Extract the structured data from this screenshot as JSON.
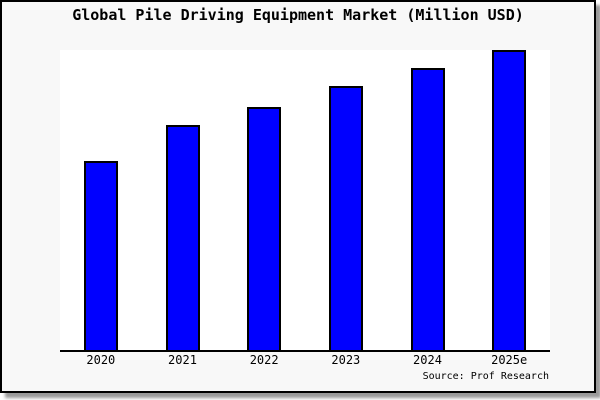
{
  "header": {
    "title": "Global Pile Driving Equipment Market (Million USD)"
  },
  "footer": {
    "source": "Source: Prof Research"
  },
  "colors": {
    "bar_fill": "#0000FF",
    "bar_border": "#000000",
    "canvas_bg": "#F8F8F8",
    "plot_bg": "#FFFFFF",
    "axis_line": "#000000",
    "text": "#000000"
  },
  "chart_data": {
    "type": "bar",
    "title": "Global Pile Driving Equipment Market (Million USD)",
    "categories": [
      "2020",
      "2021",
      "2022",
      "2023",
      "2024",
      "2025e"
    ],
    "values": [
      63,
      75,
      81,
      88,
      94,
      100
    ],
    "unit": "relative market size (chart shows no y-axis labels; tallest bar 2025e = 100)",
    "xlabel": "",
    "ylabel": "",
    "ylim": [
      0,
      100
    ],
    "grid": false,
    "legend": "none",
    "bar_color": "#0000FF",
    "source": "Source: Prof Research"
  }
}
